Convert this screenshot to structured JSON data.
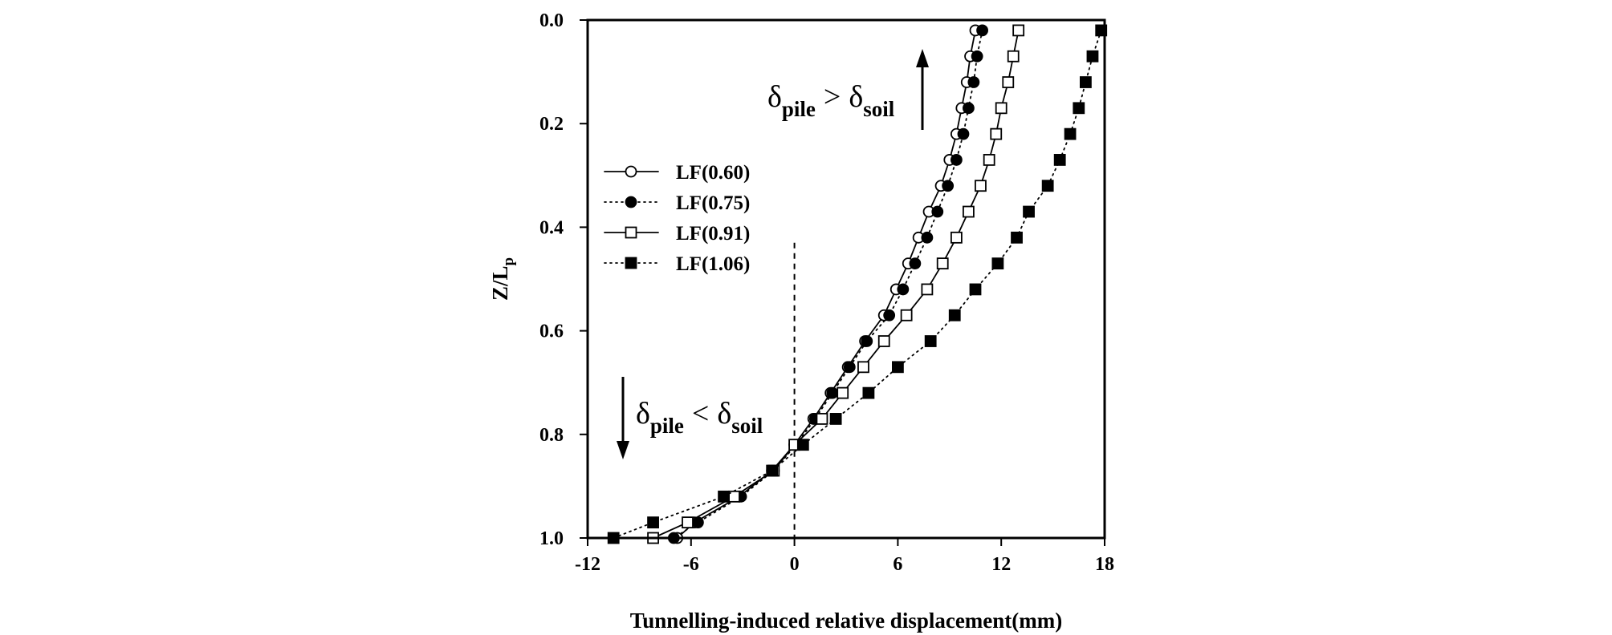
{
  "chart_data": {
    "type": "line",
    "orientation": "profile (y axis reversed, depth downward)",
    "xlabel": "Tunnelling-induced relative displacement(mm)",
    "ylabel_main": "Z/L",
    "ylabel_sub": "p",
    "xlim": [
      -12,
      18
    ],
    "ylim": [
      0,
      1
    ],
    "y_reversed": true,
    "x_ticks": [
      "-12",
      "-6",
      "0",
      "6",
      "12",
      "18"
    ],
    "x_tick_values": [
      -12,
      -6,
      0,
      6,
      12,
      18
    ],
    "y_ticks": [
      "0.0",
      "0.2",
      "0.4",
      "0.6",
      "0.8",
      "1.0"
    ],
    "y_tick_values": [
      0.0,
      0.2,
      0.4,
      0.6,
      0.8,
      1.0
    ],
    "reference_line": {
      "x": 0,
      "y_from": 0.43,
      "y_to": 1.0,
      "style": "dashed"
    },
    "legend_position": "upper-left",
    "series": [
      {
        "name": "LF(0.60)",
        "line": "solid",
        "marker": "circle",
        "filled": false,
        "z": [
          0.02,
          0.07,
          0.12,
          0.17,
          0.22,
          0.27,
          0.32,
          0.37,
          0.42,
          0.47,
          0.52,
          0.57,
          0.62,
          0.67,
          0.72,
          0.77,
          0.82,
          0.87,
          0.92,
          0.97,
          1.0
        ],
        "dx": [
          10.5,
          10.2,
          10.0,
          9.7,
          9.4,
          9.0,
          8.5,
          7.8,
          7.2,
          6.6,
          5.9,
          5.2,
          4.1,
          3.1,
          2.1,
          1.1,
          0.0,
          -1.3,
          -3.2,
          -5.8,
          -6.8
        ]
      },
      {
        "name": "LF(0.75)",
        "line": "dotted",
        "marker": "circle",
        "filled": true,
        "z": [
          0.02,
          0.07,
          0.12,
          0.17,
          0.22,
          0.27,
          0.32,
          0.37,
          0.42,
          0.47,
          0.52,
          0.57,
          0.62,
          0.67,
          0.72,
          0.77,
          0.82,
          0.87,
          0.92,
          0.97,
          1.0
        ],
        "dx": [
          10.9,
          10.6,
          10.4,
          10.1,
          9.8,
          9.4,
          8.9,
          8.3,
          7.7,
          7.0,
          6.3,
          5.5,
          4.2,
          3.2,
          2.2,
          1.2,
          0.1,
          -1.2,
          -3.1,
          -5.6,
          -7.0
        ]
      },
      {
        "name": "LF(0.91)",
        "line": "solid",
        "marker": "square",
        "filled": false,
        "z": [
          0.02,
          0.07,
          0.12,
          0.17,
          0.22,
          0.27,
          0.32,
          0.37,
          0.42,
          0.47,
          0.52,
          0.57,
          0.62,
          0.67,
          0.72,
          0.77,
          0.82,
          0.87,
          0.92,
          0.97,
          1.0
        ],
        "dx": [
          13.0,
          12.7,
          12.4,
          12.0,
          11.7,
          11.3,
          10.8,
          10.1,
          9.4,
          8.6,
          7.7,
          6.5,
          5.2,
          4.0,
          2.8,
          1.6,
          0.0,
          -1.2,
          -3.5,
          -6.2,
          -8.2
        ]
      },
      {
        "name": "LF(1.06)",
        "line": "dotted",
        "marker": "square",
        "filled": true,
        "z": [
          0.02,
          0.07,
          0.12,
          0.17,
          0.22,
          0.27,
          0.32,
          0.37,
          0.42,
          0.47,
          0.52,
          0.57,
          0.62,
          0.67,
          0.72,
          0.77,
          0.82,
          0.87,
          0.92,
          0.97,
          1.0
        ],
        "dx": [
          17.8,
          17.3,
          16.9,
          16.5,
          16.0,
          15.4,
          14.7,
          13.6,
          12.9,
          11.8,
          10.5,
          9.3,
          7.9,
          6.0,
          4.3,
          2.4,
          0.5,
          -1.3,
          -4.1,
          -8.2,
          -10.5
        ]
      }
    ],
    "annotations": [
      {
        "id": "top",
        "main": "δ",
        "sub1": "pile",
        "op": ">",
        "main2": "δ",
        "sub2": "soil",
        "arrow": "up"
      },
      {
        "id": "bottom",
        "main": "δ",
        "sub1": "pile",
        "op": "<",
        "main2": "δ",
        "sub2": "soil",
        "arrow": "down"
      }
    ]
  }
}
